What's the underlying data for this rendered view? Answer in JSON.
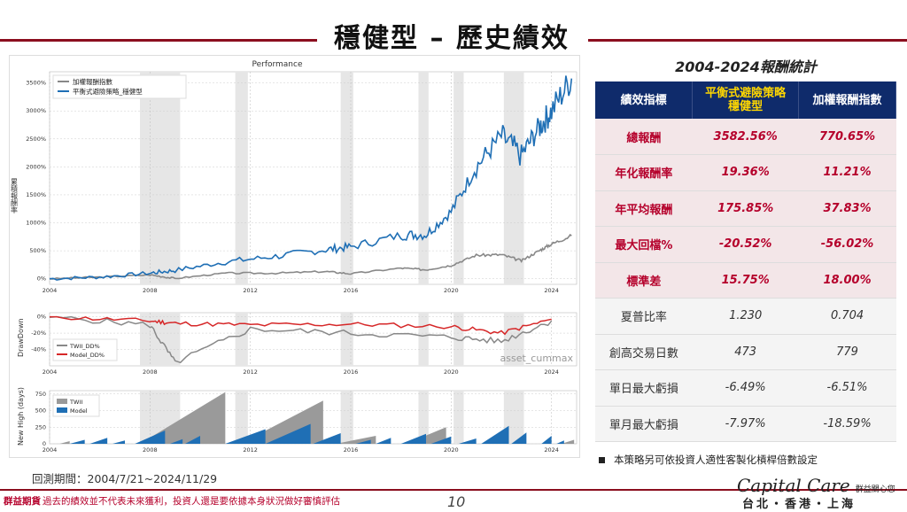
{
  "header": {
    "title": "穩健型 – 歷史績效"
  },
  "chart": {
    "title": "Performance",
    "ylabel_main": "累積報酬率",
    "ylabel_dd": "DrawDown",
    "ylabel_nh": "New High (days)",
    "watermark": "asset_cummax",
    "main_legend": [
      "加權報酬指數",
      "平衡式避險策略_穩健型"
    ],
    "dd_legend": [
      "TWII_DD%",
      "Model_DD%"
    ],
    "nh_legend": [
      "TWII",
      "Model"
    ],
    "main_yticks": [
      "3500%",
      "3000%",
      "2500%",
      "2000%",
      "1500%",
      "1000%",
      "500%",
      "0%"
    ],
    "dd_yticks": [
      "0%",
      "-20%",
      "-40%"
    ],
    "nh_yticks": [
      "750",
      "500",
      "250",
      "0"
    ],
    "xticks": [
      "2004",
      "2008",
      "2012",
      "2016",
      "2020",
      "2024"
    ],
    "colors": {
      "twii": "#888888",
      "model": "#1f6fb5",
      "model_dd": "#d62728",
      "shade": "#e6e6e6"
    }
  },
  "chart_data": [
    {
      "type": "line",
      "title": "Performance",
      "ylabel": "累積報酬率",
      "x": [
        "2004",
        "2006",
        "2008",
        "2009",
        "2011",
        "2013",
        "2015",
        "2016",
        "2018",
        "2019",
        "2020",
        "2021",
        "2022",
        "2022.8",
        "2023.5",
        "2024",
        "2024.8"
      ],
      "series": [
        {
          "name": "加權報酬指數",
          "values": [
            0,
            30,
            70,
            5,
            100,
            100,
            130,
            90,
            190,
            160,
            240,
            420,
            430,
            320,
            500,
            620,
            770
          ]
        },
        {
          "name": "平衡式避險策略_穩健型",
          "values": [
            0,
            30,
            100,
            150,
            300,
            400,
            520,
            570,
            780,
            790,
            1200,
            2000,
            2550,
            2200,
            2700,
            3000,
            3580
          ]
        }
      ],
      "ylim": [
        0,
        3500
      ]
    },
    {
      "type": "line",
      "ylabel": "DrawDown",
      "x": [
        "2004",
        "2008",
        "2009",
        "2012",
        "2016",
        "2020",
        "2022",
        "2024"
      ],
      "series": [
        {
          "name": "TWII_DD%",
          "values": [
            0,
            -10,
            -56,
            -15,
            -20,
            -25,
            -30,
            -5
          ]
        },
        {
          "name": "Model_DD%",
          "values": [
            0,
            -5,
            -8,
            -10,
            -9,
            -12,
            -20,
            -3
          ]
        }
      ],
      "ylim": [
        -60,
        5
      ]
    },
    {
      "type": "area",
      "ylabel": "New High (days)",
      "series": [
        {
          "name": "TWII",
          "values": [
            0,
            779,
            0,
            650,
            0,
            300,
            0
          ]
        },
        {
          "name": "Model",
          "values": [
            0,
            200,
            0,
            300,
            0,
            470,
            0
          ]
        }
      ],
      "ylim": [
        0,
        800
      ]
    }
  ],
  "stats": {
    "title": "2004-2024報酬統計",
    "headers": [
      "績效指標",
      "平衡式避險策略\n穩健型",
      "加權報酬指數"
    ],
    "rows": [
      {
        "label": "總報酬",
        "model": "3582.56%",
        "twii": "770.65%",
        "style": "red"
      },
      {
        "label": "年化報酬率",
        "model": "19.36%",
        "twii": "11.21%",
        "style": "red"
      },
      {
        "label": "年平均報酬",
        "model": "175.85%",
        "twii": "37.83%",
        "style": "red"
      },
      {
        "label": "最大回檔%",
        "model": "-20.52%",
        "twii": "-56.02%",
        "style": "red"
      },
      {
        "label": "標準差",
        "model": "15.75%",
        "twii": "18.00%",
        "style": "red"
      },
      {
        "label": "夏普比率",
        "model": "1.230",
        "twii": "0.704",
        "style": "grey"
      },
      {
        "label": "創高交易日數",
        "model": "473",
        "twii": "779",
        "style": "grey"
      },
      {
        "label": "單日最大虧損",
        "model": "-6.49%",
        "twii": "-6.51%",
        "style": "grey"
      },
      {
        "label": "單月最大虧損",
        "model": "-7.97%",
        "twii": "-18.59%",
        "style": "grey"
      }
    ]
  },
  "note": "本策略另可依投資人適性客製化槓桿倍數設定",
  "footer": {
    "period": "回測期間：2004/7/21~2024/11/29",
    "brand": "群益期貨",
    "disclaimer": "過去的績效並不代表未來獲利，投資人還是要依據本身狀況做好審慎評估",
    "page": "10",
    "logo": "Capital Care",
    "logo_sub": "群益關心您",
    "cities": "台北・香港・上海"
  }
}
